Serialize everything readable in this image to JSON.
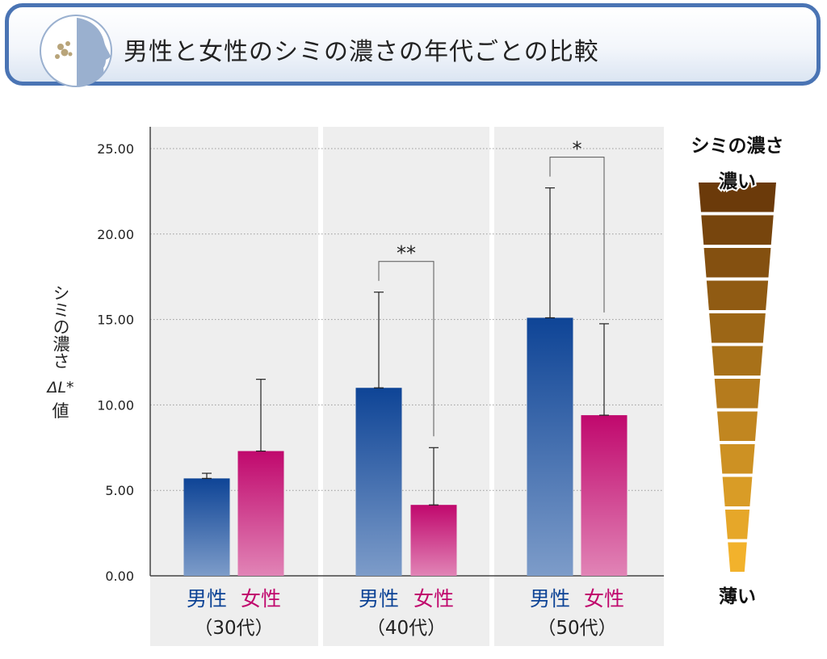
{
  "header": {
    "title": "男性と女性のシミの濃さの年代ごとの比較"
  },
  "chart_data": {
    "type": "bar",
    "title": "男性と女性のシミの濃さの年代ごとの比較",
    "ylabel_lines": [
      "シミの濃さ",
      "ΔL*",
      "値"
    ],
    "ylim": [
      0,
      25
    ],
    "yticks": [
      "0.00",
      "5.00",
      "10.00",
      "15.00",
      "20.00",
      "25.00"
    ],
    "grid": true,
    "categories": [
      {
        "sex": [
          "男性",
          "女性"
        ],
        "age": "（30代）"
      },
      {
        "sex": [
          "男性",
          "女性"
        ],
        "age": "（40代）"
      },
      {
        "sex": [
          "男性",
          "女性"
        ],
        "age": "（50代）"
      }
    ],
    "series": [
      {
        "name": "男性",
        "color": "#0e4496",
        "values": [
          5.7,
          11.0,
          15.1
        ],
        "errors": [
          0.3,
          5.6,
          7.6
        ]
      },
      {
        "name": "女性",
        "color": "#c0086d",
        "values": [
          7.3,
          4.15,
          9.4
        ],
        "errors": [
          4.2,
          3.35,
          5.35
        ]
      }
    ],
    "significance": [
      {
        "group": 1,
        "label": "**"
      },
      {
        "group": 2,
        "label": "*"
      }
    ]
  },
  "legend_scale": {
    "title": "シミの濃さ",
    "top_label": "濃い",
    "bottom_label": "薄い",
    "color_dark": "#6b3a0a",
    "color_light": "#f2b22c",
    "segments": 12
  }
}
